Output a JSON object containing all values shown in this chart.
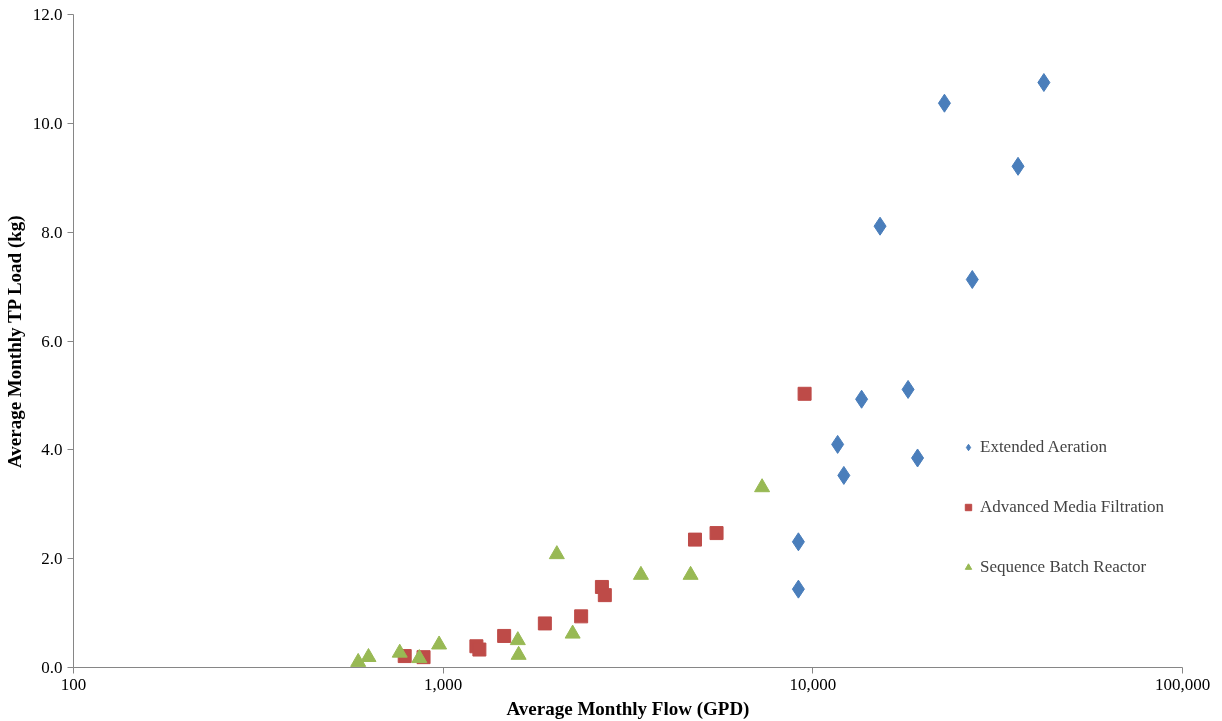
{
  "chart_data": {
    "type": "scatter",
    "xlabel": "Average Monthly Flow (GPD)",
    "ylabel": "Average Monthly TP Load (kg)",
    "log": "x",
    "grid": false,
    "legend": "right",
    "xlim": [
      100,
      100000
    ],
    "xticks": [
      100,
      {
        "value": 1000,
        "label": "1,000"
      },
      {
        "value": 10000,
        "label": "10,000"
      },
      {
        "value": 100000,
        "label": "100,000"
      }
    ],
    "ylim": [
      0,
      12
    ],
    "yticks": [
      {
        "value": 0,
        "label": "0.0"
      },
      {
        "value": 2,
        "label": "2.0"
      },
      {
        "value": 4,
        "label": "4.0"
      },
      {
        "value": 6,
        "label": "6.0"
      },
      {
        "value": 8,
        "label": "8.0"
      },
      {
        "value": 10,
        "label": "10.0"
      },
      {
        "value": 12,
        "label": "12.0"
      }
    ],
    "series": [
      {
        "name": "Extended Aeration",
        "color": "#4a7ebb",
        "marker": "diamond",
        "x": [
          42170,
          22700,
          35900,
          15200,
          27000,
          18100,
          13550,
          11670,
          19200,
          12130,
          9140,
          9140
        ],
        "values": [
          10.75,
          10.37,
          9.21,
          8.11,
          7.13,
          5.11,
          4.93,
          4.1,
          3.85,
          3.53,
          2.31,
          1.44
        ]
      },
      {
        "name": "Advanced Media Filtration",
        "color": "#be4b48",
        "marker": "square",
        "x": [
          9500,
          787,
          885,
          1230,
          1253,
          1462,
          1884,
          2362,
          2688,
          2737,
          4800,
          5490
        ],
        "values": [
          5.03,
          0.21,
          0.19,
          0.39,
          0.33,
          0.58,
          0.81,
          0.94,
          1.48,
          1.33,
          2.35,
          2.47
        ]
      },
      {
        "name": "Sequence Batch Reactor",
        "color": "#98b954",
        "marker": "triangle",
        "x": [
          589,
          628,
          763,
          862,
          975,
          1592,
          1600,
          2030,
          2240,
          3427,
          4670,
          7290
        ],
        "values": [
          0.1,
          0.19,
          0.27,
          0.17,
          0.42,
          0.5,
          0.23,
          2.08,
          0.62,
          1.7,
          1.7,
          3.31
        ]
      }
    ]
  }
}
